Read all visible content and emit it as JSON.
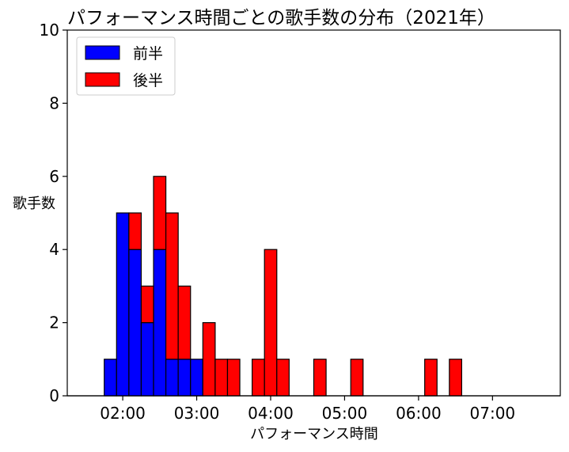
{
  "chart_data": {
    "type": "bar",
    "title": "パフォーマンス時間ごとの歌手数の分布（2021年）",
    "xlabel": "パフォーマンス時間",
    "ylabel": "歌手数",
    "x_unit": "minutes",
    "xlim": [
      75,
      475
    ],
    "ylim": [
      0,
      10
    ],
    "bin_width": 10,
    "stacked": true,
    "x_ticks": [
      {
        "value": 120,
        "label": "02:00"
      },
      {
        "value": 180,
        "label": "03:00"
      },
      {
        "value": 240,
        "label": "04:00"
      },
      {
        "value": 300,
        "label": "05:00"
      },
      {
        "value": 360,
        "label": "06:00"
      },
      {
        "value": 420,
        "label": "07:00"
      }
    ],
    "y_ticks": [
      0,
      2,
      4,
      6,
      8,
      10
    ],
    "legend_position": "top-left",
    "grid": false,
    "series": [
      {
        "name": "前半",
        "color": "#0000ff",
        "bins": [
          {
            "start": 105,
            "count": 1
          },
          {
            "start": 115,
            "count": 5
          },
          {
            "start": 125,
            "count": 4
          },
          {
            "start": 135,
            "count": 2
          },
          {
            "start": 145,
            "count": 4
          },
          {
            "start": 155,
            "count": 1
          },
          {
            "start": 165,
            "count": 1
          },
          {
            "start": 175,
            "count": 1
          }
        ]
      },
      {
        "name": "後半",
        "color": "#ff0000",
        "bins": [
          {
            "start": 125,
            "count": 1
          },
          {
            "start": 135,
            "count": 1
          },
          {
            "start": 145,
            "count": 2
          },
          {
            "start": 155,
            "count": 4
          },
          {
            "start": 165,
            "count": 2
          },
          {
            "start": 185,
            "count": 2
          },
          {
            "start": 195,
            "count": 1
          },
          {
            "start": 205,
            "count": 1
          },
          {
            "start": 225,
            "count": 1
          },
          {
            "start": 235,
            "count": 4
          },
          {
            "start": 245,
            "count": 1
          },
          {
            "start": 275,
            "count": 1
          },
          {
            "start": 305,
            "count": 1
          },
          {
            "start": 365,
            "count": 1
          },
          {
            "start": 385,
            "count": 1
          }
        ]
      }
    ],
    "baseline_range": [
      75,
      475
    ]
  }
}
